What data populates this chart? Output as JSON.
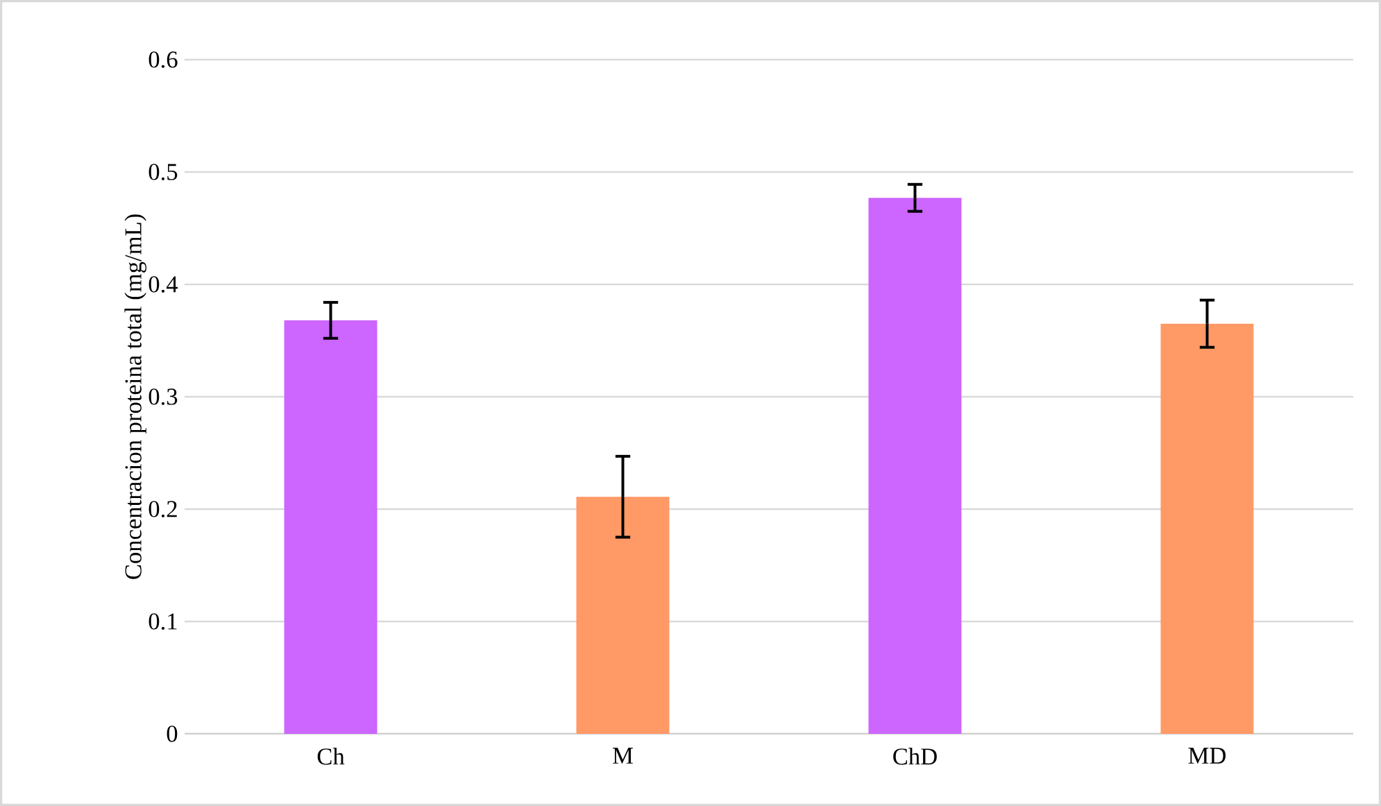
{
  "chart_data": {
    "type": "bar",
    "ylabel": "Concentracion proteina total (mg/mL)",
    "categories": [
      "Ch",
      "M",
      "ChD",
      "MD"
    ],
    "values": [
      0.368,
      0.211,
      0.477,
      0.365
    ],
    "errors": [
      0.016,
      0.036,
      0.012,
      0.021
    ],
    "colors": [
      "#cc66ff",
      "#ff9966",
      "#cc66ff",
      "#ff9966"
    ],
    "ylim": [
      0,
      0.6
    ],
    "yticks": [
      0,
      0.1,
      0.2,
      0.3,
      0.4,
      0.5,
      0.6
    ],
    "grid": "y"
  }
}
